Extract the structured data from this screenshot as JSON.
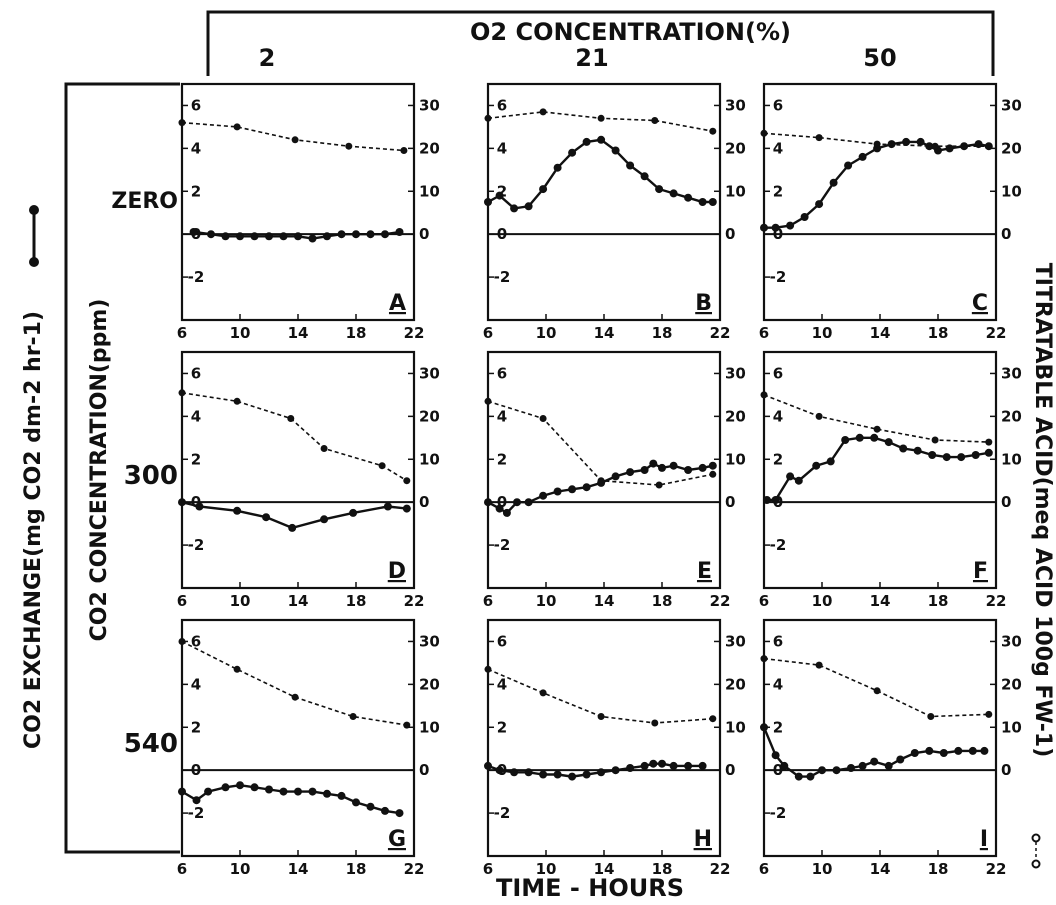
{
  "header": {
    "o2_title": "O2 CONCENTRATION(%)",
    "o2_levels": [
      "2",
      "21",
      "50"
    ]
  },
  "side": {
    "co2_conc_label": "CO2 CONCENTRATION(ppm)",
    "co2_levels": [
      "ZERO",
      "300",
      "540"
    ],
    "left_axis_title": "CO2 EXCHANGE(mg CO2 dm-2 hr-1)",
    "right_axis_title": "TITRATABLE ACID(meq ACID 100g FW-1)",
    "x_axis_title": "TIME - HOURS"
  },
  "chart_data": [
    {
      "type": "line",
      "panel": "A",
      "o2": "2",
      "co2": "ZERO",
      "xlim": [
        6,
        22
      ],
      "ylim_left": [
        -4,
        7
      ],
      "ylim_right": [
        -20,
        35
      ],
      "xticks": [
        6,
        10,
        14,
        18,
        22
      ],
      "yticks_left": [
        6,
        4,
        2,
        0,
        -2
      ],
      "yticks_right": [
        30,
        20,
        10,
        0
      ],
      "series": [
        {
          "axis": "left",
          "style": "solid",
          "x": [
            6.8,
            8,
            9,
            10,
            11,
            12,
            13,
            14,
            15,
            16,
            17,
            18,
            19,
            20,
            21
          ],
          "y": [
            0.1,
            0.0,
            -0.1,
            -0.1,
            -0.1,
            -0.1,
            -0.1,
            -0.1,
            -0.2,
            -0.1,
            0.0,
            0.0,
            0.0,
            0.0,
            0.1
          ]
        },
        {
          "axis": "right",
          "style": "dashed",
          "x": [
            6,
            9.8,
            13.8,
            17.5,
            21.3
          ],
          "y": [
            26,
            25,
            22,
            20.5,
            19.5
          ]
        }
      ]
    },
    {
      "type": "line",
      "panel": "D",
      "o2": "21",
      "co2": "ZERO",
      "xlim": [
        6,
        22
      ],
      "ylim_left": [
        -4,
        7
      ],
      "ylim_right": [
        -20,
        35
      ],
      "xticks": [
        6,
        10,
        14,
        18,
        22
      ],
      "yticks_left": [
        6,
        4,
        2,
        0,
        -2
      ],
      "yticks_right": [
        30,
        20,
        10,
        0
      ],
      "series": [
        {
          "axis": "left",
          "style": "solid",
          "x": [
            6,
            7.2,
            9.8,
            11.8,
            13.6,
            15.8,
            17.8,
            20.2,
            21.5
          ],
          "y": [
            0.0,
            -0.2,
            -0.4,
            -0.7,
            -1.2,
            -0.8,
            -0.5,
            -0.2,
            -0.3
          ]
        },
        {
          "axis": "right",
          "style": "dashed",
          "x": [
            6,
            9.8,
            13.5,
            15.8,
            19.8,
            21.5
          ],
          "y": [
            25.5,
            23.5,
            19.5,
            12.5,
            8.5,
            5
          ]
        }
      ]
    },
    {
      "type": "line",
      "panel": "G",
      "o2": "50",
      "co2": "ZERO",
      "xlim": [
        6,
        22
      ],
      "ylim_left": [
        -4,
        7
      ],
      "ylim_right": [
        -20,
        35
      ],
      "xticks": [
        6,
        10,
        14,
        18,
        22
      ],
      "yticks_left": [
        6,
        4,
        2,
        0,
        -2
      ],
      "yticks_right": [
        30,
        20,
        10,
        0
      ],
      "series": [
        {
          "axis": "left",
          "style": "solid",
          "x": [
            6,
            7,
            7.8,
            9,
            10,
            11,
            12,
            13,
            14,
            15,
            16,
            17,
            18,
            19,
            20,
            21
          ],
          "y": [
            -1.0,
            -1.4,
            -1.0,
            -0.8,
            -0.7,
            -0.8,
            -0.9,
            -1.0,
            -1.0,
            -1.0,
            -1.1,
            -1.2,
            -1.5,
            -1.7,
            -1.9,
            -2.0
          ]
        },
        {
          "axis": "right",
          "style": "dashed",
          "x": [
            6,
            9.8,
            13.8,
            17.8,
            21.5
          ],
          "y": [
            30,
            23.5,
            17,
            12.5,
            10.5
          ]
        }
      ]
    },
    {
      "type": "line",
      "panel": "B",
      "o2": "2",
      "co2": "300",
      "xlim": [
        6,
        22
      ],
      "ylim_left": [
        -4,
        7
      ],
      "ylim_right": [
        -20,
        35
      ],
      "xticks": [
        6,
        10,
        14,
        18,
        22
      ],
      "yticks_left": [
        6,
        4,
        2,
        0,
        -2
      ],
      "yticks_right": [
        30,
        20,
        10,
        0
      ],
      "series": [
        {
          "axis": "left",
          "style": "solid",
          "x": [
            6,
            6.8,
            7.8,
            8.8,
            9.8,
            10.8,
            11.8,
            12.8,
            13.8,
            14.8,
            15.8,
            16.8,
            17.8,
            18.8,
            19.8,
            20.8,
            21.5
          ],
          "y": [
            1.5,
            1.8,
            1.2,
            1.3,
            2.1,
            3.1,
            3.8,
            4.3,
            4.4,
            3.9,
            3.2,
            2.7,
            2.1,
            1.9,
            1.7,
            1.5,
            1.5
          ]
        },
        {
          "axis": "right",
          "style": "dashed",
          "x": [
            6,
            9.8,
            13.8,
            17.5,
            21.5
          ],
          "y": [
            27,
            28.5,
            27,
            26.5,
            24
          ]
        }
      ]
    },
    {
      "type": "line",
      "panel": "E",
      "o2": "21",
      "co2": "300",
      "xlim": [
        6,
        22
      ],
      "ylim_left": [
        -4,
        7
      ],
      "ylim_right": [
        -20,
        35
      ],
      "xticks": [
        6,
        10,
        14,
        18,
        22
      ],
      "yticks_left": [
        6,
        4,
        2,
        0,
        -2
      ],
      "yticks_right": [
        30,
        20,
        10,
        0
      ],
      "series": [
        {
          "axis": "left",
          "style": "solid",
          "x": [
            6,
            6.8,
            7.3,
            8,
            8.8,
            9.8,
            10.8,
            11.8,
            12.8,
            13.8,
            14.8,
            15.8,
            16.8,
            17.4,
            18,
            18.8,
            19.8,
            20.8,
            21.5
          ],
          "y": [
            0.0,
            -0.3,
            -0.5,
            0.0,
            0.0,
            0.3,
            0.5,
            0.6,
            0.7,
            0.9,
            1.2,
            1.4,
            1.5,
            1.8,
            1.6,
            1.7,
            1.5,
            1.6,
            1.7
          ]
        },
        {
          "axis": "right",
          "style": "dashed",
          "x": [
            6,
            9.8,
            13.8,
            17.8,
            21.5
          ],
          "y": [
            23.5,
            19.5,
            5,
            4,
            6.5
          ]
        }
      ]
    },
    {
      "type": "line",
      "panel": "H",
      "o2": "50",
      "co2": "300",
      "xlim": [
        6,
        22
      ],
      "ylim_left": [
        -4,
        7
      ],
      "ylim_right": [
        -20,
        35
      ],
      "xticks": [
        6,
        10,
        14,
        18,
        22
      ],
      "yticks_left": [
        6,
        4,
        2,
        0,
        -2
      ],
      "yticks_right": [
        30,
        20,
        10,
        0
      ],
      "series": [
        {
          "axis": "left",
          "style": "solid",
          "x": [
            6,
            6.8,
            7.8,
            8.8,
            9.8,
            10.8,
            11.8,
            12.8,
            13.8,
            14.8,
            15.8,
            16.8,
            17.4,
            18,
            18.8,
            19.8,
            20.8
          ],
          "y": [
            0.2,
            0.0,
            -0.1,
            -0.1,
            -0.2,
            -0.2,
            -0.3,
            -0.2,
            -0.1,
            0.0,
            0.1,
            0.2,
            0.3,
            0.3,
            0.2,
            0.2,
            0.2
          ]
        },
        {
          "axis": "right",
          "style": "dashed",
          "x": [
            6,
            9.8,
            13.8,
            17.5,
            21.5
          ],
          "y": [
            23.5,
            18,
            12.5,
            11,
            12
          ]
        }
      ]
    },
    {
      "type": "line",
      "panel": "C",
      "o2": "2",
      "co2": "540",
      "xlim": [
        6,
        22
      ],
      "ylim_left": [
        -4,
        7
      ],
      "ylim_right": [
        -20,
        35
      ],
      "xticks": [
        6,
        10,
        14,
        18,
        22
      ],
      "yticks_left": [
        6,
        4,
        2,
        0,
        -2
      ],
      "yticks_right": [
        30,
        20,
        10,
        0
      ],
      "series": [
        {
          "axis": "left",
          "style": "solid",
          "x": [
            6,
            6.8,
            7.8,
            8.8,
            9.8,
            10.8,
            11.8,
            12.8,
            13.8,
            14.8,
            15.8,
            16.8,
            17.4,
            18,
            18.8,
            19.8,
            20.8,
            21.5
          ],
          "y": [
            0.3,
            0.3,
            0.4,
            0.8,
            1.4,
            2.4,
            3.2,
            3.6,
            4.0,
            4.2,
            4.3,
            4.3,
            4.1,
            3.9,
            4.0,
            4.1,
            4.2,
            4.1
          ]
        },
        {
          "axis": "right",
          "style": "dashed",
          "x": [
            6,
            9.8,
            13.8,
            17.8,
            21.5
          ],
          "y": [
            23.5,
            22.5,
            21,
            20.5,
            20.5
          ]
        }
      ]
    },
    {
      "type": "line",
      "panel": "F",
      "o2": "21",
      "co2": "540",
      "xlim": [
        6,
        22
      ],
      "ylim_left": [
        -4,
        7
      ],
      "ylim_right": [
        -20,
        35
      ],
      "xticks": [
        6,
        10,
        14,
        18,
        22
      ],
      "yticks_left": [
        6,
        4,
        2,
        0,
        -2
      ],
      "yticks_right": [
        30,
        20,
        10,
        0
      ],
      "series": [
        {
          "axis": "left",
          "style": "solid",
          "x": [
            6.2,
            6.8,
            7.8,
            8.4,
            9.6,
            10.6,
            11.6,
            12.6,
            13.6,
            14.6,
            15.6,
            16.6,
            17.6,
            18.6,
            19.6,
            20.6,
            21.5
          ],
          "y": [
            0.1,
            0.1,
            1.2,
            1.0,
            1.7,
            1.9,
            2.9,
            3.0,
            3.0,
            2.8,
            2.5,
            2.4,
            2.2,
            2.1,
            2.1,
            2.2,
            2.3
          ]
        },
        {
          "axis": "right",
          "style": "dashed",
          "x": [
            6,
            9.8,
            13.8,
            17.8,
            21.5
          ],
          "y": [
            25,
            20,
            17,
            14.5,
            14
          ]
        }
      ]
    },
    {
      "type": "line",
      "panel": "I",
      "o2": "50",
      "co2": "540",
      "xlim": [
        6,
        22
      ],
      "ylim_left": [
        -4,
        7
      ],
      "ylim_right": [
        -20,
        35
      ],
      "xticks": [
        6,
        10,
        14,
        18,
        22
      ],
      "yticks_left": [
        6,
        4,
        2,
        0,
        -2
      ],
      "yticks_right": [
        30,
        20,
        10,
        0
      ],
      "series": [
        {
          "axis": "left",
          "style": "solid",
          "x": [
            6,
            6.8,
            7.4,
            8.4,
            9.2,
            10,
            11,
            12,
            12.8,
            13.6,
            14.6,
            15.4,
            16.4,
            17.4,
            18.4,
            19.4,
            20.4,
            21.2
          ],
          "y": [
            2.0,
            0.7,
            0.2,
            -0.3,
            -0.3,
            0.0,
            0.0,
            0.1,
            0.2,
            0.4,
            0.2,
            0.5,
            0.8,
            0.9,
            0.8,
            0.9,
            0.9,
            0.9
          ]
        },
        {
          "axis": "right",
          "style": "dashed",
          "x": [
            6,
            9.8,
            13.8,
            17.5,
            21.5
          ],
          "y": [
            26,
            24.5,
            18.5,
            12.5,
            13
          ]
        }
      ]
    }
  ]
}
